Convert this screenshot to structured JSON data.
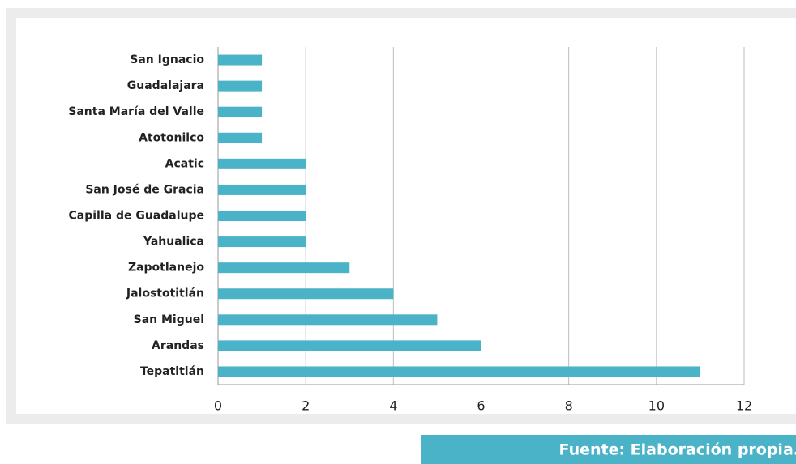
{
  "chart_data": {
    "type": "bar",
    "orientation": "horizontal",
    "categories": [
      "San Ignacio",
      "Guadalajara",
      "Santa María del Valle",
      "Atotonilco",
      "Acatic",
      "San José de Gracia",
      "Capilla de Guadalupe",
      "Yahualica",
      "Zapotlanejo",
      "Jalostotitlán",
      "San Miguel",
      "Arandas",
      "Tepatitlán"
    ],
    "values": [
      1,
      1,
      1,
      1,
      2,
      2,
      2,
      2,
      3,
      4,
      5,
      6,
      11
    ],
    "color": "#4bb3c8",
    "xlim": [
      0,
      12
    ],
    "xticks": [
      0,
      2,
      4,
      6,
      8,
      10,
      12
    ],
    "grid": true,
    "source": "Fuente: Elaboración propia."
  }
}
